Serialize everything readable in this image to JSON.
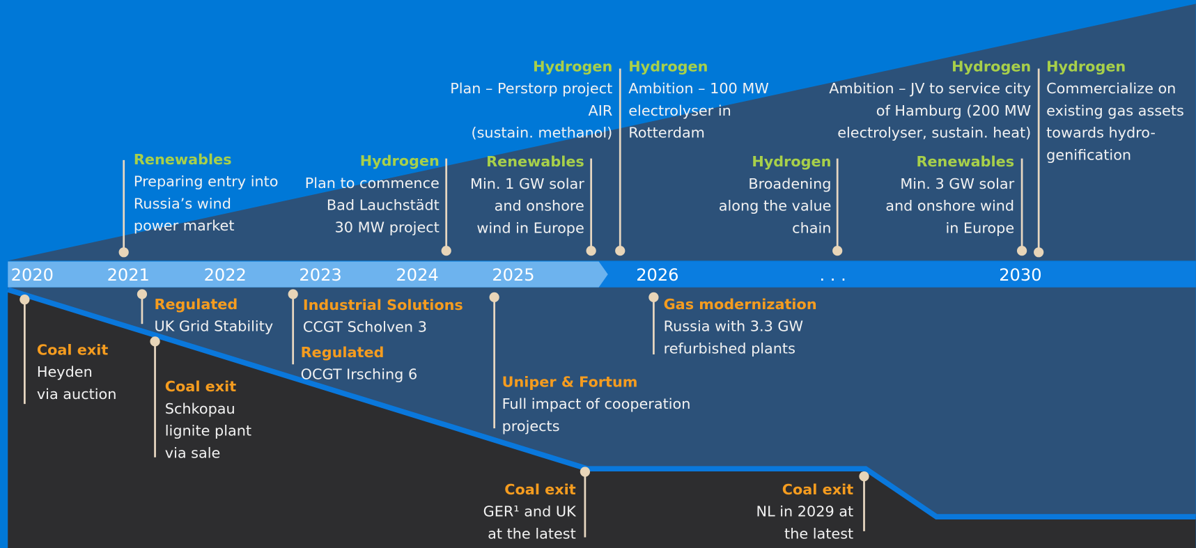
{
  "timeline": {
    "years": [
      "2020",
      "2021",
      "2022",
      "2023",
      "2024",
      "2025",
      "2026",
      ". . .",
      "2030"
    ]
  },
  "events_above": [
    {
      "category": "Renewables",
      "lines": [
        "Preparing entry into",
        "Russia’s wind",
        "power market"
      ]
    },
    {
      "category": "Hydrogen",
      "lines": [
        "Plan to commence",
        "Bad Lauchstädt",
        "30 MW project"
      ]
    },
    {
      "category": "Hydrogen",
      "lines": [
        "Plan – Perstorp project",
        "AIR",
        "(sustain. methanol)"
      ]
    },
    {
      "category": "Hydrogen",
      "lines": [
        "Ambition – 100 MW",
        "electrolyser in",
        "Rotterdam"
      ]
    },
    {
      "category": "Renewables",
      "lines": [
        "Min. 1 GW solar",
        "and onshore",
        "wind in Europe"
      ]
    },
    {
      "category": "Hydrogen",
      "lines": [
        "Broadening",
        "along the value",
        "chain"
      ]
    },
    {
      "category": "Hydrogen",
      "lines": [
        "Ambition – JV to service city",
        "of Hamburg (200 MW",
        "electrolyser, sustain. heat)"
      ]
    },
    {
      "category": "Hydrogen",
      "lines": [
        "Commercialize on",
        "existing gas assets",
        "towards hydro-",
        "genification"
      ]
    },
    {
      "category": "Renewables",
      "lines": [
        "Min. 3 GW solar",
        "and onshore wind",
        "in Europe"
      ]
    }
  ],
  "events_below": [
    {
      "category": "Coal exit",
      "lines": [
        "Heyden",
        "via auction"
      ]
    },
    {
      "category": "Regulated",
      "lines": [
        "UK Grid Stability"
      ]
    },
    {
      "category": "Coal exit",
      "lines": [
        "Schkopau",
        "lignite plant",
        "via sale"
      ]
    },
    {
      "category": "Industrial Solutions",
      "lines": [
        "CCGT Scholven 3"
      ]
    },
    {
      "category": "Regulated",
      "lines": [
        "OCGT Irsching 6"
      ]
    },
    {
      "category": "Uniper & Fortum",
      "lines": [
        "Full impact of cooperation",
        "projects"
      ]
    },
    {
      "category": "Gas modernization",
      "lines": [
        "Russia with 3.3 GW",
        "refurbished plants"
      ]
    },
    {
      "category": "Coal exit",
      "lines": [
        "GER¹ and UK",
        "at the latest"
      ]
    },
    {
      "category": "Coal exit",
      "lines": [
        "NL in 2029 at",
        "the latest"
      ]
    }
  ]
}
